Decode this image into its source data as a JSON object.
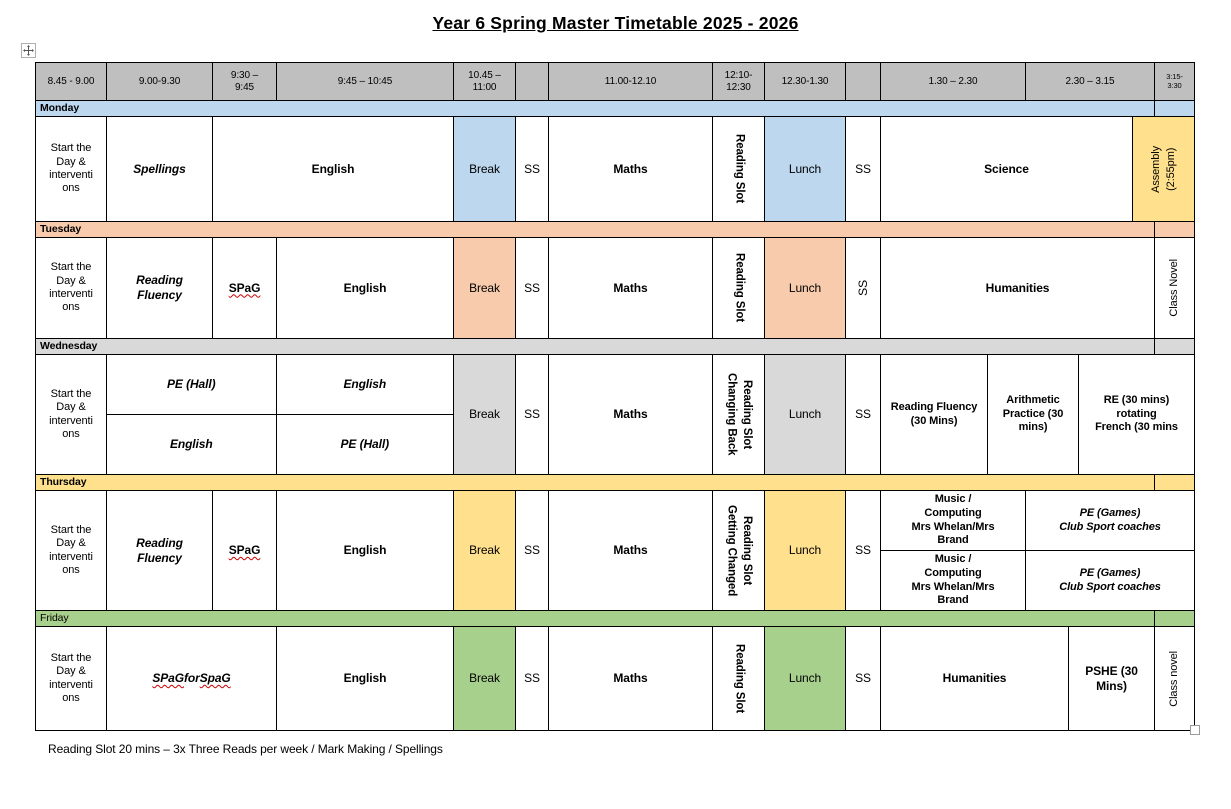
{
  "title": "Year 6 Spring Master Timetable 2025 - 2026",
  "footnote": "Reading Slot 20 mins – 3x Three Reads per week / Mark Making / Spellings",
  "header_times": [
    "8.45 - 9.00",
    "9.00-9.30",
    "9:30 –\n9:45",
    "9:45 – 10:45",
    "10.45 –\n11:00",
    "",
    "11.00-12.10",
    "12:10-\n12:30",
    "12.30-1.30",
    "",
    "1.30 – 2.30",
    "2.30 – 3.15",
    "3:15-\n3:30"
  ],
  "colors": {
    "header_bg": "#BFBFBF",
    "monday": "#BDD7EE",
    "tuesday": "#F7CBAC",
    "wednesday": "#D9D9D9",
    "thursday": "#FFE08C",
    "friday": "#A8D08D",
    "assembly_bg": "#FFE08C",
    "border": "#000000",
    "spellcheck_squiggle": "#CC0000"
  },
  "icons": {
    "table_move_handle": "four-arrow-move-icon",
    "table_resize_handle": "resize-square-icon"
  },
  "days": [
    {
      "name": "Monday",
      "start": "Start the\nDay &\ninterventi\nons",
      "spellings": "Spellings",
      "english": "English",
      "break": "Break",
      "ss_morning": "SS",
      "maths": "Maths",
      "reading_slot": "Reading Slot",
      "lunch": "Lunch",
      "ss_afternoon": "SS",
      "science": "Science",
      "assembly": "Assembly\n(2:55pm)"
    },
    {
      "name": "Tuesday",
      "start": "Start the\nDay &\ninterventi\nons",
      "reading_fluency": "Reading\nFluency",
      "spag_parts": [
        {
          "t": "SPaG",
          "w": true
        }
      ],
      "english": "English",
      "break": "Break",
      "ss_morning": "SS",
      "maths": "Maths",
      "reading_slot": "Reading Slot",
      "lunch": "Lunch",
      "ss_afternoon": "SS",
      "humanities": "Humanities",
      "class_novel": "Class Novel"
    },
    {
      "name": "Wednesday",
      "start": "Start the\nDay &\ninterventi\nons",
      "block_top_left": "PE (Hall)",
      "block_top_right": "English",
      "block_bottom_left": "English",
      "block_bottom_right": "PE (Hall)",
      "break": "Break",
      "ss_morning": "SS",
      "maths": "Maths",
      "reading_slot": "Reading Slot\nChanging Back",
      "lunch": "Lunch",
      "ss_afternoon": "SS",
      "reading_fluency_30": "Reading Fluency (30 Mins)",
      "arithmetic_practice": "Arithmetic Practice (30 mins)",
      "re_french": "RE (30 mins)\nrotating\nFrench (30 mins"
    },
    {
      "name": "Thursday",
      "start": "Start the\nDay &\ninterventi\nons",
      "reading_fluency": "Reading\nFluency",
      "spag_parts": [
        {
          "t": "SPaG",
          "w": true
        }
      ],
      "english": "English",
      "break": "Break",
      "ss_morning": "SS",
      "maths": "Maths",
      "reading_slot": "Reading Slot\nGetting Changed",
      "lunch": "Lunch",
      "ss_afternoon": "SS",
      "music_computing": "Music /\nComputing\nMrs Whelan/Mrs\nBrand",
      "pe_games": "PE (Games)\nClub Sport coaches"
    },
    {
      "name": "Friday",
      "start": "Start the\nDay &\ninterventi\nons",
      "spag_for_spag_parts": [
        {
          "t": "SPaG",
          "w": true
        },
        {
          "t": " for ",
          "w": false
        },
        {
          "t": "SpaG",
          "w": true
        }
      ],
      "english": "English",
      "break": "Break",
      "ss_morning": "SS",
      "maths": "Maths",
      "reading_slot": "Reading Slot",
      "lunch": "Lunch",
      "ss_afternoon": "SS",
      "humanities": "Humanities",
      "pshe": "PSHE (30 Mins)",
      "class_novel": "Class novel"
    }
  ]
}
